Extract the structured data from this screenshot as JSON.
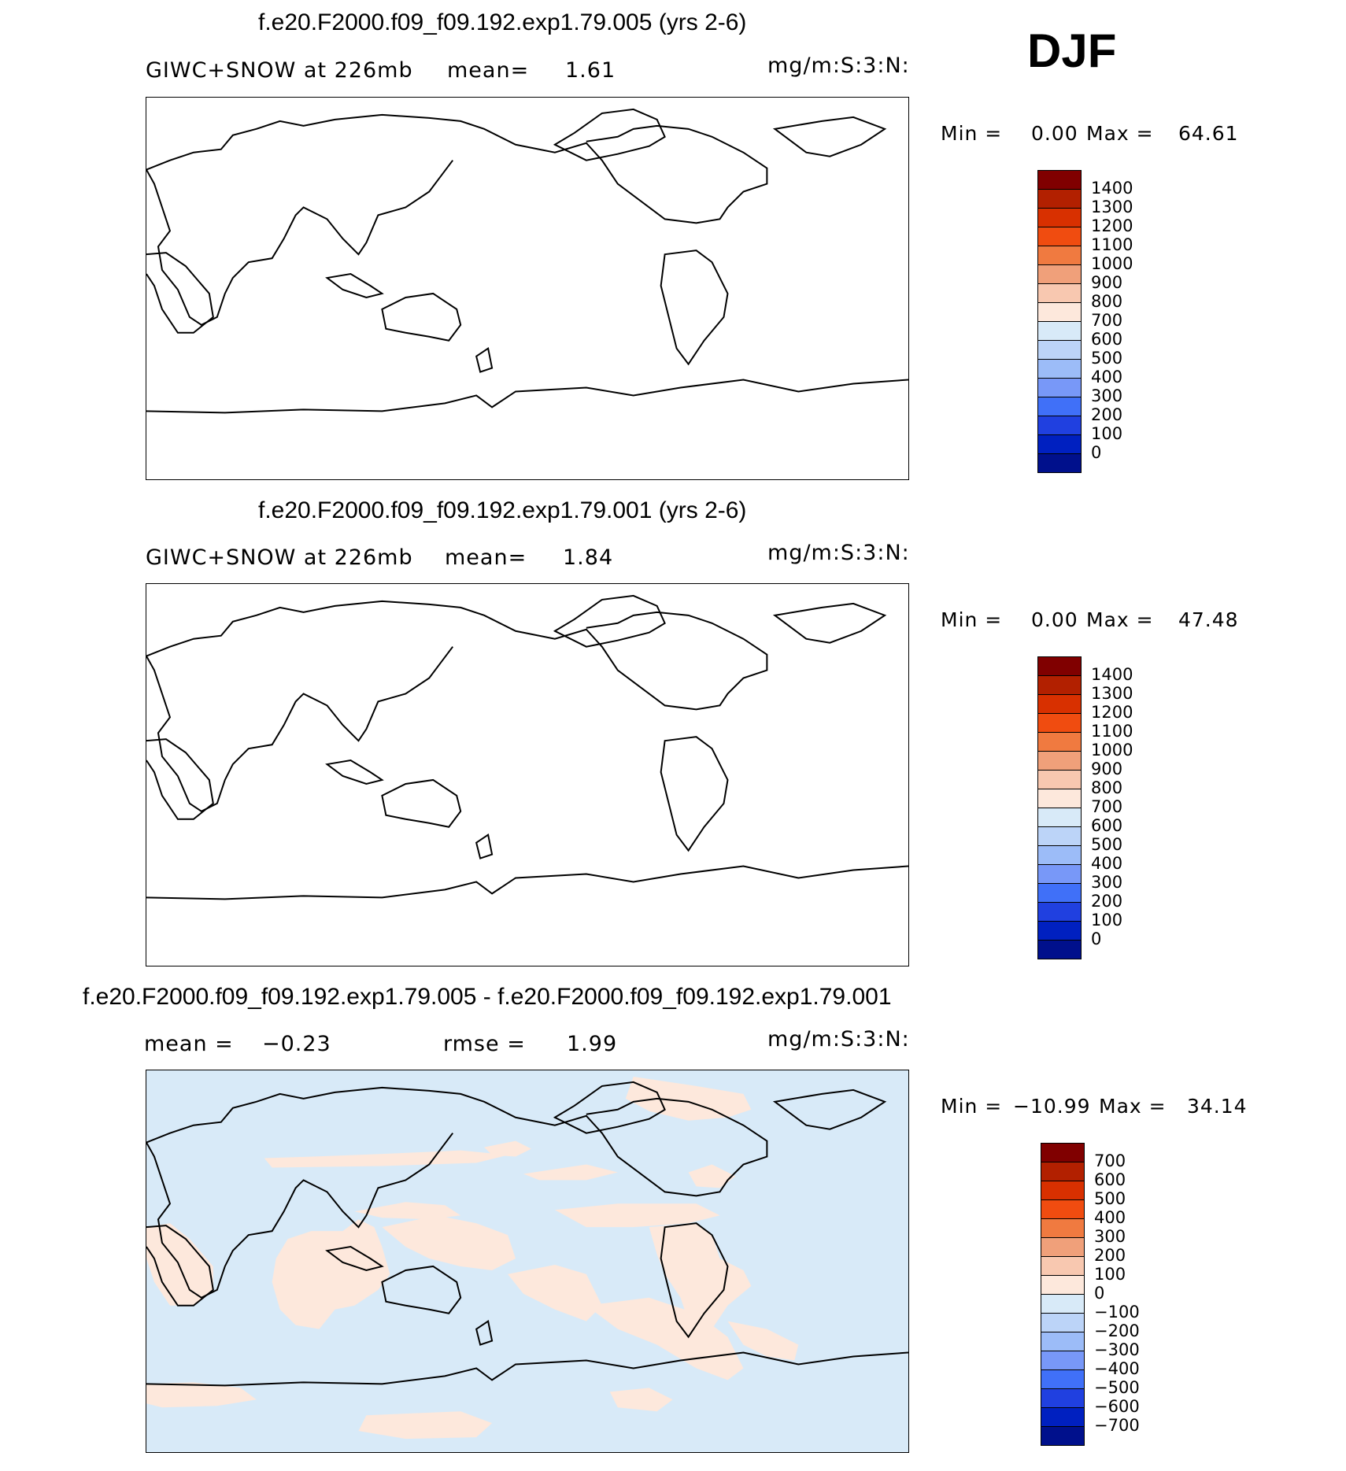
{
  "season": "DJF",
  "panels": [
    {
      "title": "f.e20.F2000.f09_f09.192.exp1.79.005 (yrs 2-6)",
      "sub_left": "GIWC+SNOW at 226mb",
      "mean_label": "mean=",
      "mean_value": "1.61",
      "units": "mg/m:S:3:N:",
      "min_label": "Min =",
      "min_value": "0.00",
      "max_label": "Max =",
      "max_value": "64.61",
      "fill": "#ffffff",
      "colorbar": {
        "labels": [
          "1400",
          "1300",
          "1200",
          "1100",
          "1000",
          "900",
          "800",
          "700",
          "600",
          "500",
          "400",
          "300",
          "200",
          "100",
          "0"
        ],
        "colors": [
          "#800000",
          "#b22000",
          "#d83000",
          "#f04c10",
          "#f07a40",
          "#f0a07a",
          "#f8c8b0",
          "#fde8dc",
          "#d8eaf8",
          "#bcd4f8",
          "#9cbcf8",
          "#7898f8",
          "#4070f8",
          "#2040e0",
          "#0020c0",
          "#00108c"
        ]
      }
    },
    {
      "title": "f.e20.F2000.f09_f09.192.exp1.79.001 (yrs 2-6)",
      "sub_left": "GIWC+SNOW at 226mb",
      "mean_label": "mean=",
      "mean_value": "1.84",
      "units": "mg/m:S:3:N:",
      "min_label": "Min =",
      "min_value": "0.00",
      "max_label": "Max =",
      "max_value": "47.48",
      "fill": "#ffffff",
      "colorbar": {
        "labels": [
          "1400",
          "1300",
          "1200",
          "1100",
          "1000",
          "900",
          "800",
          "700",
          "600",
          "500",
          "400",
          "300",
          "200",
          "100",
          "0"
        ],
        "colors": [
          "#800000",
          "#b22000",
          "#d83000",
          "#f04c10",
          "#f07a40",
          "#f0a07a",
          "#f8c8b0",
          "#fde8dc",
          "#d8eaf8",
          "#bcd4f8",
          "#9cbcf8",
          "#7898f8",
          "#4070f8",
          "#2040e0",
          "#0020c0",
          "#00108c"
        ]
      }
    },
    {
      "title": "f.e20.F2000.f09_f09.192.exp1.79.005 - f.e20.F2000.f09_f09.192.exp1.79.001",
      "sub_left": "mean =",
      "sub_left_value": "−0.23",
      "rmse_label": "rmse =",
      "rmse_value": "1.99",
      "units": "mg/m:S:3:N:",
      "min_label": "Min =",
      "min_value": "−10.99",
      "max_label": "Max =",
      "max_value": "34.14",
      "fill": "#d8eaf8",
      "positive_fill": "#fde8dc",
      "colorbar": {
        "labels": [
          "700",
          "600",
          "500",
          "400",
          "300",
          "200",
          "100",
          "0",
          "−100",
          "−200",
          "−300",
          "−400",
          "−500",
          "−600",
          "−700"
        ],
        "colors": [
          "#800000",
          "#b22000",
          "#d83000",
          "#f04c10",
          "#f07a40",
          "#f0a07a",
          "#f8c8b0",
          "#fde8dc",
          "#d8eaf8",
          "#bcd4f8",
          "#9cbcf8",
          "#7898f8",
          "#4070f8",
          "#2040e0",
          "#0020c0",
          "#00108c"
        ]
      }
    }
  ]
}
